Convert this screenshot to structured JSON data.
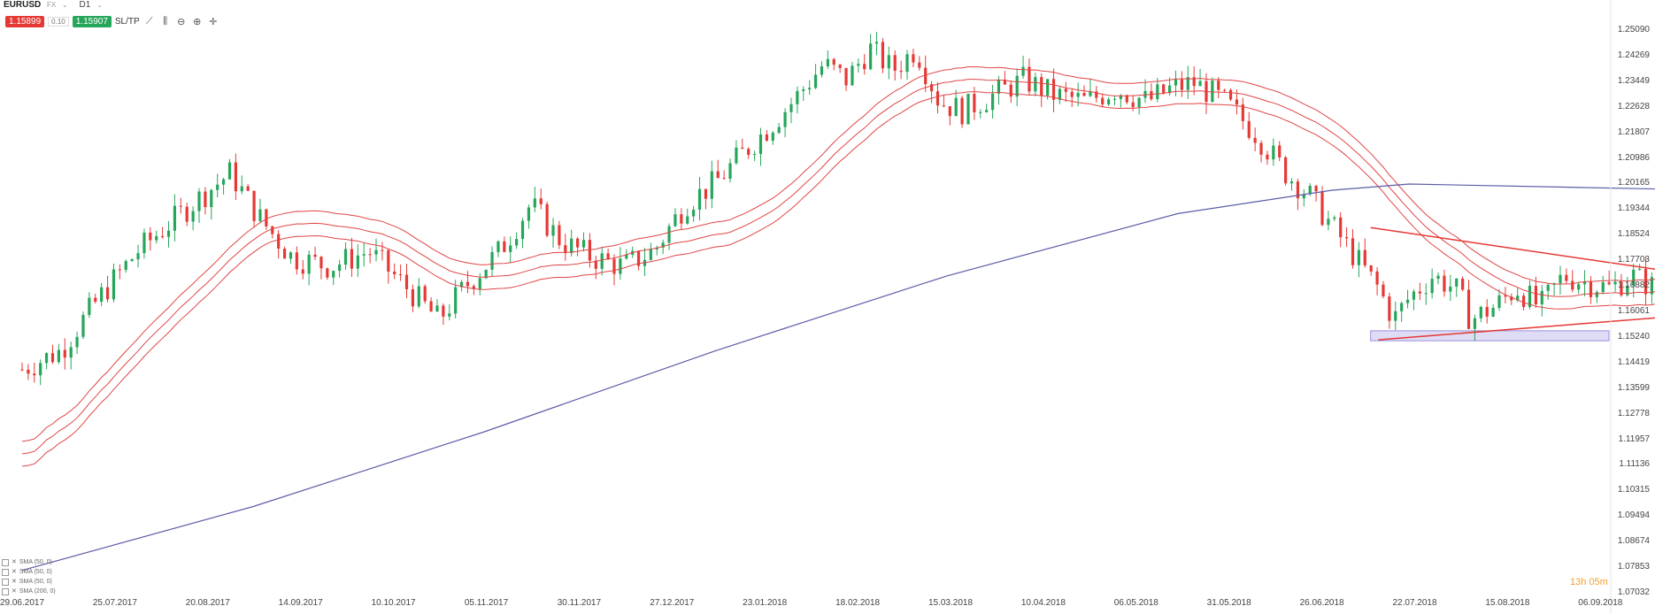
{
  "header": {
    "symbol": "EURUSD",
    "market": "FX",
    "timeframe": "D1",
    "bid": "1.15899",
    "lot": "0.10",
    "ask": "1.15907",
    "sltp": "SL/TP"
  },
  "toolbar_icons": [
    "line-chart-icon",
    "candles-icon",
    "zoom-out-icon",
    "zoom-in-icon",
    "crosshair-icon"
  ],
  "indicators": [
    "SMA (50, 0)",
    "SMA (50, 0)",
    "SMA (50, 0)",
    "SMA (200, 0)"
  ],
  "timer": "13h 05m",
  "colors": {
    "bull": "#26a65b",
    "bear": "#e53935",
    "sma50": "#e04545",
    "sma200": "#5c5ca8",
    "trendline": "#e53935",
    "support_zone": "#b9b2ea"
  },
  "chart_data": {
    "type": "candlestick",
    "instrument": "EURUSD",
    "timeframe": "D1",
    "y_ticks": [
      "1.25090",
      "1.24269",
      "1.23449",
      "1.22628",
      "1.21807",
      "1.20986",
      "1.20165",
      "1.19344",
      "1.18524",
      "1.17703",
      "1.16882",
      "1.16061",
      "1.15240",
      "1.14419",
      "1.13599",
      "1.12778",
      "1.11957",
      "1.11136",
      "1.10315",
      "1.09494",
      "1.08674",
      "1.07853",
      "1.07032"
    ],
    "x_ticks": [
      "29.06.2017",
      "25.07.2017",
      "20.08.2017",
      "14.09.2017",
      "10.10.2017",
      "05.11.2017",
      "30.11.2017",
      "27.12.2017",
      "23.01.2018",
      "18.02.2018",
      "15.03.2018",
      "10.04.2018",
      "06.05.2018",
      "31.05.2018",
      "26.06.2018",
      "22.07.2018",
      "15.08.2018",
      "06.09.2018"
    ],
    "ylim": [
      1.07032,
      1.2509
    ],
    "close_path": [
      [
        0,
        1.142
      ],
      [
        0.05,
        1.148
      ],
      [
        0.1,
        1.165
      ],
      [
        0.15,
        1.18
      ],
      [
        0.22,
        1.195
      ],
      [
        0.27,
        1.205
      ],
      [
        0.31,
        1.19
      ],
      [
        0.35,
        1.178
      ],
      [
        0.4,
        1.175
      ],
      [
        0.45,
        1.18
      ],
      [
        0.5,
        1.168
      ],
      [
        0.54,
        1.158
      ],
      [
        0.58,
        1.17
      ],
      [
        0.62,
        1.18
      ],
      [
        0.66,
        1.195
      ],
      [
        0.7,
        1.183
      ],
      [
        0.74,
        1.178
      ],
      [
        0.78,
        1.175
      ],
      [
        0.82,
        1.18
      ],
      [
        0.86,
        1.195
      ],
      [
        0.9,
        1.202
      ],
      [
        0.93,
        1.21
      ],
      [
        0.97,
        1.22
      ],
      [
        1.0,
        1.228
      ],
      [
        1.04,
        1.24
      ],
      [
        1.07,
        1.235
      ],
      [
        1.1,
        1.245
      ],
      [
        1.13,
        1.238
      ],
      [
        1.16,
        1.245
      ],
      [
        1.19,
        1.228
      ],
      [
        1.22,
        1.225
      ],
      [
        1.26,
        1.23
      ],
      [
        1.3,
        1.235
      ],
      [
        1.34,
        1.23
      ],
      [
        1.38,
        1.228
      ],
      [
        1.42,
        1.232
      ],
      [
        1.46,
        1.228
      ],
      [
        1.49,
        1.232
      ],
      [
        1.52,
        1.234
      ],
      [
        1.56,
        1.228
      ],
      [
        1.6,
        1.218
      ],
      [
        1.64,
        1.205
      ],
      [
        1.67,
        1.198
      ],
      [
        1.7,
        1.188
      ],
      [
        1.73,
        1.178
      ],
      [
        1.76,
        1.168
      ],
      [
        1.78,
        1.158
      ],
      [
        1.8,
        1.165
      ],
      [
        1.83,
        1.172
      ],
      [
        1.86,
        1.168
      ],
      [
        1.88,
        1.158
      ],
      [
        1.91,
        1.162
      ],
      [
        1.94,
        1.168
      ],
      [
        1.97,
        1.162
      ],
      [
        2.0,
        1.172
      ],
      [
        2.03,
        1.17
      ],
      [
        2.06,
        1.168
      ],
      [
        2.09,
        1.172
      ],
      [
        2.12,
        1.168
      ],
      [
        2.15,
        1.17
      ],
      [
        2.18,
        1.166
      ],
      [
        2.21,
        1.159
      ]
    ],
    "sma200_path": [
      [
        0,
        1.0775
      ],
      [
        0.3,
        1.098
      ],
      [
        0.6,
        1.122
      ],
      [
        0.9,
        1.148
      ],
      [
        1.2,
        1.172
      ],
      [
        1.5,
        1.192
      ],
      [
        1.7,
        1.1995
      ],
      [
        1.8,
        1.2015
      ],
      [
        2.0,
        1.2005
      ],
      [
        2.2,
        1.1995
      ],
      [
        2.35,
        1.1985
      ]
    ],
    "triangle": {
      "upper": [
        [
          1.75,
          1.1875
        ],
        [
          2.4,
          1.164
        ]
      ],
      "lower": [
        [
          1.76,
          1.1515
        ],
        [
          2.4,
          1.164
        ]
      ]
    },
    "support_zone": [
      1.1512,
      1.1544
    ]
  }
}
